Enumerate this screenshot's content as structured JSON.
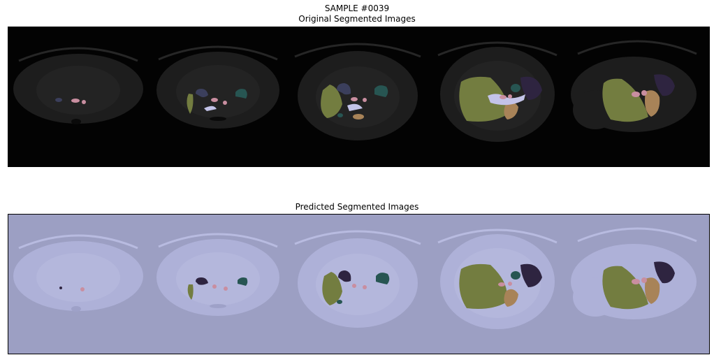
{
  "figure": {
    "suptitle": "SAMPLE #0039",
    "top_title": "Original Segmented Images",
    "bottom_title": "Predicted Segmented Images"
  },
  "colors": {
    "original_bg": "#030303",
    "original_body": "#1d1d1d",
    "predicted_bg": "#9c9fc3",
    "predicted_body": "#aeb1d8",
    "liver": "#737d40",
    "stomach": "#a88358",
    "spleen": "#2e2440",
    "kidney": "#3b3f5c",
    "gallbladder": "#275552",
    "aorta": "#c98ea0",
    "pancreas": "#c3c3e8",
    "vena_cava": "#c98ea0"
  }
}
